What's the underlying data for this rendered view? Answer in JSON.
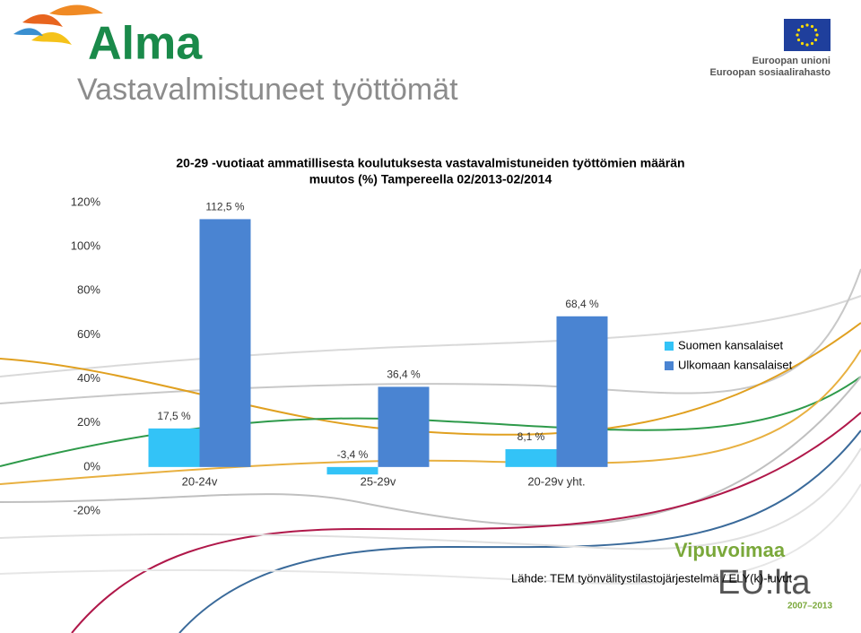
{
  "slide": {
    "logo": "Alma",
    "title": "Vastavalmistuneet työttömät",
    "eu_line1": "Euroopan unioni",
    "eu_line2": "Euroopan sosiaalirahasto",
    "vipu1": "Vipuvoimaa",
    "vipu2": "EU:lta",
    "vipu3": "2007–2013",
    "source": "Lähde: TEM työnvälitystilastojärjestelmä / ELY(k)-luvut"
  },
  "chart_data": {
    "type": "bar",
    "title": [
      "20-29 -vuotiaat ammatillisesta koulutuksesta vastavalmistuneiden työttömien määrän",
      "muutos (%) Tampereella 02/2013-02/2014"
    ],
    "categories": [
      "20-24v",
      "25-29v",
      "20-29v yht."
    ],
    "series": [
      {
        "name": "Suomen kansalaiset",
        "color": "#33c3f7",
        "values": [
          17.5,
          -3.4,
          8.1
        ],
        "value_labels": [
          "17,5 %",
          "-3,4 %",
          "8,1 %"
        ]
      },
      {
        "name": "Ulkomaan kansalaiset",
        "color": "#4a84d2",
        "values": [
          112.5,
          36.4,
          68.4
        ],
        "value_labels": [
          "112,5 %",
          "36,4 %",
          "68,4 %"
        ]
      }
    ],
    "ylim": [
      -20,
      120
    ],
    "yticks": [
      {
        "value": -20,
        "label": "-20%"
      },
      {
        "value": 0,
        "label": "0%"
      },
      {
        "value": 20,
        "label": "20%"
      },
      {
        "value": 40,
        "label": "40%"
      },
      {
        "value": 60,
        "label": "60%"
      },
      {
        "value": 80,
        "label": "80%"
      },
      {
        "value": 100,
        "label": "100%"
      },
      {
        "value": 120,
        "label": "120%"
      }
    ],
    "grid": false,
    "legend": "right"
  }
}
